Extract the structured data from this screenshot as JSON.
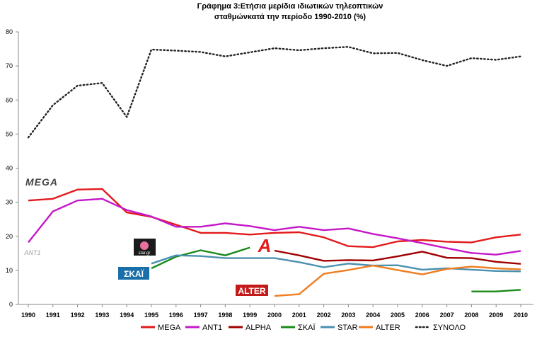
{
  "chart_data": {
    "type": "line",
    "title_lines": [
      "Γράφημα 3:Ετήσια μερίδια ιδιωτικών τηλεοπτικών",
      "σταθμώνκατά την περίοδο 1990-2010 (%)"
    ],
    "x": [
      "1990",
      "1991",
      "1992",
      "1993",
      "1994",
      "1995",
      "1996",
      "1997",
      "1998",
      "1999",
      "2000",
      "2001",
      "2002",
      "2003",
      "2004",
      "2005",
      "2006",
      "2007",
      "2008",
      "2009",
      "2010"
    ],
    "ylim": [
      0,
      80
    ],
    "yticks": [
      0,
      10,
      20,
      30,
      40,
      50,
      60,
      70,
      80
    ],
    "grid": false,
    "legend_position": "bottom",
    "series": [
      {
        "name": "MEGA",
        "color": "#e31a1c",
        "style": "solid",
        "values": [
          30.5,
          31,
          33.7,
          33.9,
          27,
          25.7,
          23.4,
          21,
          21,
          20.5,
          21,
          21.2,
          19.7,
          17.1,
          16.8,
          18.5,
          18.9,
          18.4,
          18.2,
          19.7,
          20.5
        ]
      },
      {
        "name": "ANT1",
        "color": "#c418c8",
        "style": "solid",
        "values": [
          18.2,
          27.3,
          30.5,
          31,
          27.7,
          25.8,
          22.8,
          22.8,
          23.8,
          23,
          21.8,
          22.8,
          21.8,
          22.3,
          20.7,
          19.4,
          18,
          16.5,
          15.1,
          14.6,
          15.7
        ]
      },
      {
        "name": "ALPHA",
        "color": "#a00000",
        "style": "solid",
        "values": [
          null,
          null,
          null,
          null,
          null,
          null,
          null,
          null,
          null,
          null,
          15.8,
          14.4,
          12.8,
          13,
          12.9,
          14.1,
          15.5,
          13.7,
          13.6,
          12.5,
          11.9
        ]
      },
      {
        "name": "ΣΚΑΪ",
        "color": "#1a8a1a",
        "style": "solid",
        "values": [
          null,
          null,
          null,
          null,
          null,
          10.6,
          14,
          15.9,
          14.4,
          16.7,
          null,
          null,
          null,
          null,
          null,
          null,
          null,
          null,
          3.8,
          3.8,
          4.3
        ]
      },
      {
        "name": "STAR",
        "color": "#4a90b0",
        "style": "solid",
        "values": [
          null,
          null,
          null,
          null,
          null,
          12,
          14.4,
          14.2,
          13.6,
          13.6,
          13.6,
          12.4,
          10.9,
          12,
          11.4,
          11.5,
          10.2,
          10.6,
          10.2,
          9.8,
          9.7
        ]
      },
      {
        "name": "ALTER",
        "color": "#f07d20",
        "style": "solid",
        "values": [
          null,
          null,
          null,
          null,
          null,
          null,
          null,
          null,
          null,
          null,
          2.5,
          3,
          9,
          10.1,
          11.4,
          10.1,
          8.8,
          10.4,
          11.1,
          10.6,
          10.3
        ]
      },
      {
        "name": "ΣΥΝΟΛΟ",
        "color": "#222222",
        "style": "dotted",
        "values": [
          49,
          58.5,
          64.2,
          65,
          55,
          74.8,
          74.5,
          74.1,
          72.8,
          74,
          75.2,
          74.6,
          75.2,
          75.6,
          73.7,
          73.8,
          71.7,
          70,
          72.3,
          71.8,
          72.8
        ]
      }
    ],
    "channel_logos": [
      {
        "name": "MEGA",
        "text": "MEGA",
        "color": "#444444"
      },
      {
        "name": "ANT1",
        "text": "ANT1",
        "color": "#bbbbbb"
      },
      {
        "name": "STAR",
        "text": "star.gr",
        "color": "#ffffff"
      },
      {
        "name": "SKAI",
        "text": "ΣΚΑΪ",
        "color": "#1a6fa8"
      },
      {
        "name": "ALPHA",
        "text": "A",
        "color": "#e31a1c"
      },
      {
        "name": "ALTER",
        "text": "ALTER",
        "color": "#c41a1a"
      }
    ]
  }
}
